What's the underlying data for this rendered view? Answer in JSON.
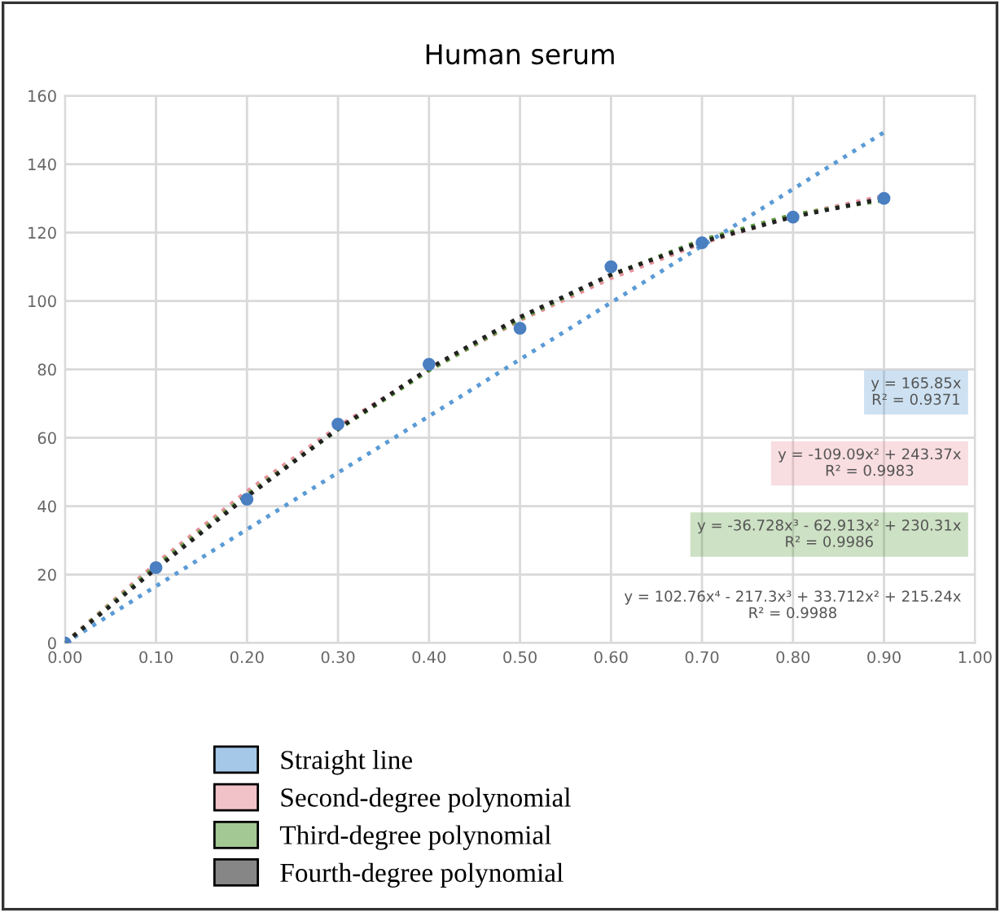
{
  "chart_data": {
    "type": "scatter",
    "title": "Human serum",
    "x": [
      0,
      0.1,
      0.2,
      0.3,
      0.4,
      0.5,
      0.6,
      0.7,
      0.8,
      0.9
    ],
    "series": [
      {
        "color": "#4a7fc1",
        "marker": "circle",
        "values": [
          0,
          22,
          42,
          64,
          81.5,
          92,
          110,
          117,
          124.5,
          130
        ]
      },
      {
        "type": "line",
        "name": "Straight line",
        "color": "#5b9bd5",
        "line_style": "dotted",
        "values": [
          0,
          16.6,
          33.2,
          49.8,
          66.3,
          82.9,
          99.5,
          116.1,
          132.7,
          149.3
        ]
      },
      {
        "type": "line",
        "name": "Second-degree polynomial",
        "color": "#e8909c",
        "line_style": "dotted",
        "values": [
          0,
          23.2,
          44.3,
          63.2,
          79.9,
          94.4,
          106.7,
          116.9,
          124.9,
          130.7
        ]
      },
      {
        "type": "line",
        "name": "Third-degree polynomial",
        "color": "#5a9a3c",
        "line_style": "dotted",
        "values": [
          0,
          22.4,
          43.3,
          62.4,
          79.7,
          94.8,
          107.6,
          117.8,
          125.2,
          129.5
        ]
      },
      {
        "type": "line",
        "name": "Fourth-degree polynomial",
        "color": "#222222",
        "line_style": "dotted",
        "values": [
          0,
          21.7,
          42.8,
          62.6,
          80.2,
          95.3,
          107.7,
          117.3,
          124.6,
          130.0
        ]
      }
    ],
    "annotations": [
      "y = 165.85x\nR² = 0.9371",
      "y = -109.09x² + 243.37x\nR² = 0.9983",
      "y = -36.728x³ - 62.913x² + 230.31x\nR² = 0.9986",
      "y = 102.76x⁴ - 217.3x³ + 33.712x² + 215.24x\nR² = 0.9988"
    ],
    "xlim": [
      0,
      1
    ],
    "xticks": [
      {
        "value": 0,
        "label": "0.00"
      },
      {
        "value": 0.1,
        "label": "0.10"
      },
      {
        "value": 0.2,
        "label": "0.20"
      },
      {
        "value": 0.3,
        "label": "0.30"
      },
      {
        "value": 0.4,
        "label": "0.40"
      },
      {
        "value": 0.5,
        "label": "0.50"
      },
      {
        "value": 0.6,
        "label": "0.60"
      },
      {
        "value": 0.7,
        "label": "0.70"
      },
      {
        "value": 0.8,
        "label": "0.80"
      },
      {
        "value": 0.9,
        "label": "0.90"
      },
      {
        "value": 1,
        "label": "1.00"
      }
    ],
    "ylim": [
      0,
      160
    ],
    "yticks": [
      0,
      20,
      40,
      60,
      80,
      100,
      120,
      140,
      160
    ],
    "grid": true,
    "legend": "bottom"
  }
}
